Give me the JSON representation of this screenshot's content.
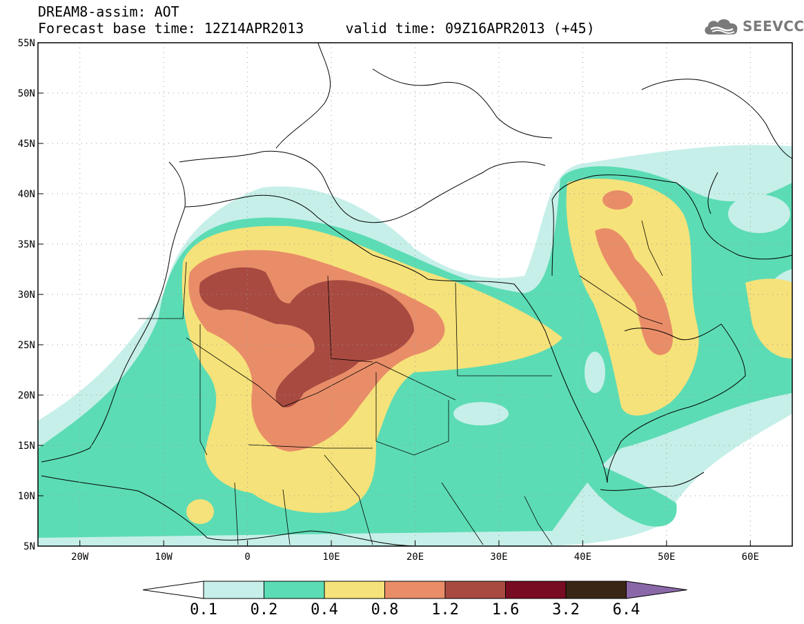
{
  "header": {
    "title_line1": "DREAM8-assim: AOT",
    "title_line2": "Forecast base time: 12Z14APR2013     valid time: 09Z16APR2013 (+45)"
  },
  "logo": {
    "icon": "cloud-icon",
    "text": "SEEVCCC",
    "color": "#7a7a7a"
  },
  "map": {
    "lon_range": [
      -25,
      65
    ],
    "lat_range": [
      5,
      55
    ],
    "lat_ticks": [
      {
        "value": 55,
        "label": "55N"
      },
      {
        "value": 50,
        "label": "50N"
      },
      {
        "value": 45,
        "label": "45N"
      },
      {
        "value": 40,
        "label": "40N"
      },
      {
        "value": 35,
        "label": "35N"
      },
      {
        "value": 30,
        "label": "30N"
      },
      {
        "value": 25,
        "label": "25N"
      },
      {
        "value": 20,
        "label": "20N"
      },
      {
        "value": 15,
        "label": "15N"
      },
      {
        "value": 10,
        "label": "10N"
      },
      {
        "value": 5,
        "label": "5N"
      }
    ],
    "lon_ticks": [
      {
        "value": -20,
        "label": "20W"
      },
      {
        "value": -10,
        "label": "10W"
      },
      {
        "value": 0,
        "label": "0"
      },
      {
        "value": 10,
        "label": "10E"
      },
      {
        "value": 20,
        "label": "20E"
      },
      {
        "value": 30,
        "label": "30E"
      },
      {
        "value": 40,
        "label": "40E"
      },
      {
        "value": 50,
        "label": "50E"
      },
      {
        "value": 60,
        "label": "60E"
      }
    ],
    "grid": true
  },
  "colorbar": {
    "levels": [
      "0.1",
      "0.2",
      "0.4",
      "0.8",
      "1.2",
      "1.6",
      "3.2",
      "6.4"
    ],
    "colors": [
      "#ffffff",
      "#c6efe9",
      "#5cdcb4",
      "#f6e27a",
      "#e98d68",
      "#a94a41",
      "#780c22",
      "#3a2615",
      "#8a68a8"
    ]
  }
}
